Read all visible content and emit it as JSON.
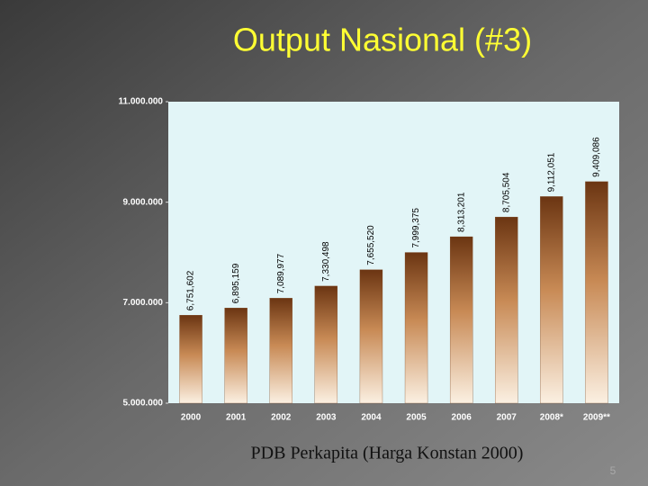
{
  "chart_data": {
    "type": "bar",
    "title": "Output Nasional (#3)",
    "caption": "PDB Perkapita (Harga Konstan 2000)",
    "categories": [
      "2000",
      "2001",
      "2002",
      "2003",
      "2004",
      "2005",
      "2006",
      "2007",
      "2008*",
      "2009**"
    ],
    "values": [
      6751602,
      6895159,
      7089977,
      7330498,
      7655520,
      7999375,
      8313201,
      8705504,
      9112051,
      9409086
    ],
    "value_labels": [
      "6,751,602",
      "6,895,159",
      "7,089,977",
      "7,330,498",
      "7,655,520",
      "7,999,375",
      "8,313,201",
      "8,705,504",
      "9,112,051",
      "9,409,086"
    ],
    "color": "#7a3e16",
    "ylim": [
      5000000,
      11000000
    ],
    "yticks": [
      {
        "value": 5000000,
        "label": "5.000.000"
      },
      {
        "value": 7000000,
        "label": "7.000.000"
      },
      {
        "value": 9000000,
        "label": "9.000.000"
      },
      {
        "value": 11000000,
        "label": "11.000.000"
      }
    ],
    "grid": false
  },
  "page_number": "5"
}
